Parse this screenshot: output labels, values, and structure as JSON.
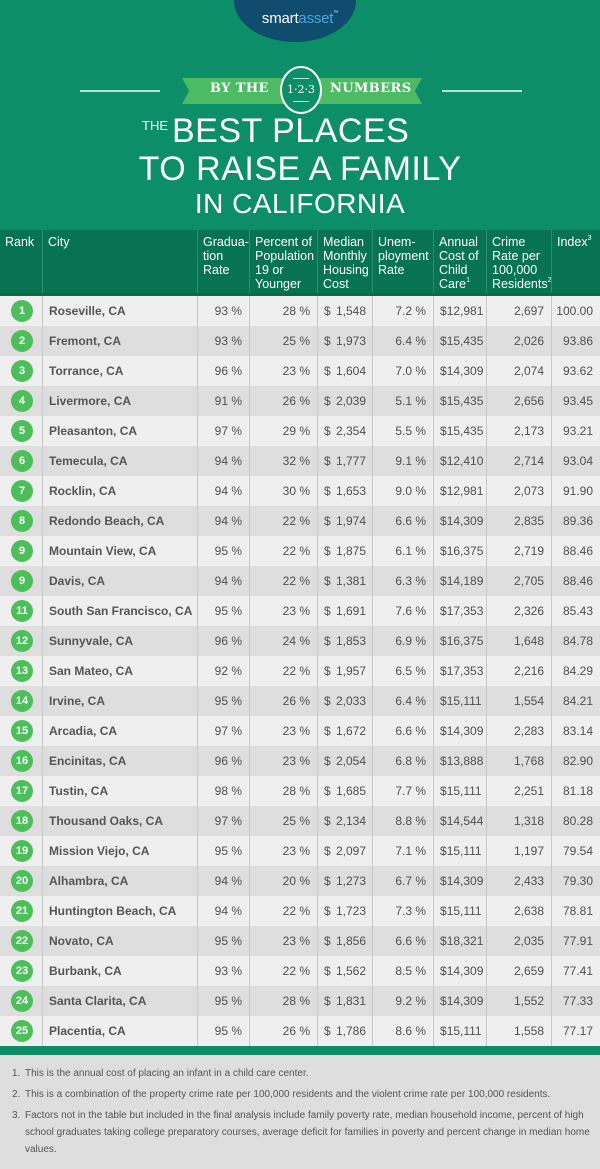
{
  "header": {
    "logo": {
      "part1": "smart",
      "part2": "asset",
      "tm": "™"
    },
    "banner": {
      "left": "BY THE",
      "circle": "1·2·3",
      "right": "NUMBERS"
    },
    "title": {
      "small": "THE",
      "line1": "BEST PLACES",
      "line2": "TO RAISE A FAMILY",
      "line3": "IN CALIFORNIA"
    }
  },
  "colors": {
    "background": "#0c8f68",
    "header_row": "#087350",
    "rank_badge": "#4cbf5b",
    "logo_bubble": "#0f4c6e",
    "row_light": "#efefef",
    "row_dark": "#dedede"
  },
  "table": {
    "columns": [
      {
        "label": "Rank",
        "sup": ""
      },
      {
        "label": "City",
        "sup": ""
      },
      {
        "label": "Gradua-tion Rate",
        "sup": ""
      },
      {
        "label": "Percent of Population 19 or Younger",
        "sup": ""
      },
      {
        "label": "Median Monthly Housing Cost",
        "sup": ""
      },
      {
        "label": "Unem-ployment Rate",
        "sup": ""
      },
      {
        "label": "Annual Cost of Child Care",
        "sup": "1"
      },
      {
        "label": "Crime Rate per 100,000 Residents",
        "sup": "2"
      },
      {
        "label": "Index",
        "sup": "3"
      }
    ],
    "rows": [
      {
        "rank": "1",
        "city": "Roseville, CA",
        "grad": "93 %",
        "pop": "28 %",
        "housing": "1,548",
        "unemp": "7.2 %",
        "childcare": "12,981",
        "crime": "2,697",
        "index": "100.00"
      },
      {
        "rank": "2",
        "city": "Fremont, CA",
        "grad": "93 %",
        "pop": "25 %",
        "housing": "1,973",
        "unemp": "6.4 %",
        "childcare": "15,435",
        "crime": "2,026",
        "index": "93.86"
      },
      {
        "rank": "3",
        "city": "Torrance, CA",
        "grad": "96 %",
        "pop": "23 %",
        "housing": "1,604",
        "unemp": "7.0 %",
        "childcare": "14,309",
        "crime": "2,074",
        "index": "93.62"
      },
      {
        "rank": "4",
        "city": "Livermore, CA",
        "grad": "91 %",
        "pop": "26 %",
        "housing": "2,039",
        "unemp": "5.1 %",
        "childcare": "15,435",
        "crime": "2,656",
        "index": "93.45"
      },
      {
        "rank": "5",
        "city": "Pleasanton, CA",
        "grad": "97 %",
        "pop": "29 %",
        "housing": "2,354",
        "unemp": "5.5 %",
        "childcare": "15,435",
        "crime": "2,173",
        "index": "93.21"
      },
      {
        "rank": "6",
        "city": "Temecula, CA",
        "grad": "94 %",
        "pop": "32 %",
        "housing": "1,777",
        "unemp": "9.1 %",
        "childcare": "12,410",
        "crime": "2,714",
        "index": "93.04"
      },
      {
        "rank": "7",
        "city": "Rocklin, CA",
        "grad": "94 %",
        "pop": "30 %",
        "housing": "1,653",
        "unemp": "9.0 %",
        "childcare": "12,981",
        "crime": "2,073",
        "index": "91.90"
      },
      {
        "rank": "8",
        "city": "Redondo Beach, CA",
        "grad": "94 %",
        "pop": "22 %",
        "housing": "1,974",
        "unemp": "6.6 %",
        "childcare": "14,309",
        "crime": "2,835",
        "index": "89.36"
      },
      {
        "rank": "9",
        "city": "Mountain View, CA",
        "grad": "95 %",
        "pop": "22 %",
        "housing": "1,875",
        "unemp": "6.1 %",
        "childcare": "16,375",
        "crime": "2,719",
        "index": "88.46"
      },
      {
        "rank": "9",
        "city": "Davis, CA",
        "grad": "94 %",
        "pop": "22 %",
        "housing": "1,381",
        "unemp": "6.3 %",
        "childcare": "14,189",
        "crime": "2,705",
        "index": "88.46"
      },
      {
        "rank": "11",
        "city": "South San Francisco, CA",
        "grad": "95 %",
        "pop": "23 %",
        "housing": "1,691",
        "unemp": "7.6 %",
        "childcare": "17,353",
        "crime": "2,326",
        "index": "85.43"
      },
      {
        "rank": "12",
        "city": "Sunnyvale, CA",
        "grad": "96 %",
        "pop": "24 %",
        "housing": "1,853",
        "unemp": "6.9 %",
        "childcare": "16,375",
        "crime": "1,648",
        "index": "84.78"
      },
      {
        "rank": "13",
        "city": "San Mateo, CA",
        "grad": "92 %",
        "pop": "22 %",
        "housing": "1,957",
        "unemp": "6.5 %",
        "childcare": "17,353",
        "crime": "2,216",
        "index": "84.29"
      },
      {
        "rank": "14",
        "city": "Irvine, CA",
        "grad": "95 %",
        "pop": "26 %",
        "housing": "2,033",
        "unemp": "6.4 %",
        "childcare": "15,111",
        "crime": "1,554",
        "index": "84.21"
      },
      {
        "rank": "15",
        "city": "Arcadia, CA",
        "grad": "97 %",
        "pop": "23 %",
        "housing": "1,672",
        "unemp": "6.6 %",
        "childcare": "14,309",
        "crime": "2,283",
        "index": "83.14"
      },
      {
        "rank": "16",
        "city": "Encinitas, CA",
        "grad": "96 %",
        "pop": "23 %",
        "housing": "2,054",
        "unemp": "6.8 %",
        "childcare": "13,888",
        "crime": "1,768",
        "index": "82.90"
      },
      {
        "rank": "17",
        "city": "Tustin, CA",
        "grad": "98 %",
        "pop": "28 %",
        "housing": "1,685",
        "unemp": "7.7 %",
        "childcare": "15,111",
        "crime": "2,251",
        "index": "81.18"
      },
      {
        "rank": "18",
        "city": "Thousand Oaks, CA",
        "grad": "97 %",
        "pop": "25 %",
        "housing": "2,134",
        "unemp": "8.8 %",
        "childcare": "14,544",
        "crime": "1,318",
        "index": "80.28"
      },
      {
        "rank": "19",
        "city": "Mission Viejo, CA",
        "grad": "95 %",
        "pop": "23 %",
        "housing": "2,097",
        "unemp": "7.1 %",
        "childcare": "15,111",
        "crime": "1,197",
        "index": "79.54"
      },
      {
        "rank": "20",
        "city": "Alhambra, CA",
        "grad": "94 %",
        "pop": "20 %",
        "housing": "1,273",
        "unemp": "6.7 %",
        "childcare": "14,309",
        "crime": "2,433",
        "index": "79.30"
      },
      {
        "rank": "21",
        "city": "Huntington Beach, CA",
        "grad": "94 %",
        "pop": "22 %",
        "housing": "1,723",
        "unemp": "7.3 %",
        "childcare": "15,111",
        "crime": "2,638",
        "index": "78.81"
      },
      {
        "rank": "22",
        "city": "Novato, CA",
        "grad": "95 %",
        "pop": "23 %",
        "housing": "1,856",
        "unemp": "6.6 %",
        "childcare": "18,321",
        "crime": "2,035",
        "index": "77.91"
      },
      {
        "rank": "23",
        "city": "Burbank, CA",
        "grad": "93 %",
        "pop": "22 %",
        "housing": "1,562",
        "unemp": "8.5 %",
        "childcare": "14,309",
        "crime": "2,659",
        "index": "77.41"
      },
      {
        "rank": "24",
        "city": "Santa Clarita, CA",
        "grad": "95 %",
        "pop": "28 %",
        "housing": "1,831",
        "unemp": "9.2 %",
        "childcare": "14,309",
        "crime": "1,552",
        "index": "77.33"
      },
      {
        "rank": "25",
        "city": "Placentia, CA",
        "grad": "95 %",
        "pop": "26 %",
        "housing": "1,786",
        "unemp": "8.6 %",
        "childcare": "15,111",
        "crime": "1,558",
        "index": "77.17"
      }
    ],
    "currency_symbol": "$"
  },
  "footnotes": [
    {
      "num": "1.",
      "text": "This is the annual cost of placing an infant in a child care center."
    },
    {
      "num": "2.",
      "text": "This is a combination of the property crime rate per 100,000 residents and the violent crime rate per 100,000 residents."
    },
    {
      "num": "3.",
      "text": "Factors not in the table but included in the final analysis include family poverty rate, median household income, percent of high school graduates taking college preparatory courses, average deficit for families in poverty and percent change in median home values."
    }
  ],
  "chart_data": {
    "type": "table",
    "title": "The Best Places to Raise a Family in California",
    "subtitle": "By the 1·2·3 Numbers",
    "columns": [
      "Rank",
      "City",
      "Graduation Rate",
      "Percent of Population 19 or Younger",
      "Median Monthly Housing Cost",
      "Unemployment Rate",
      "Annual Cost of Child Care",
      "Crime Rate per 100,000 Residents",
      "Index"
    ],
    "rows": [
      [
        1,
        "Roseville, CA",
        93,
        28,
        1548,
        7.2,
        12981,
        2697,
        100.0
      ],
      [
        2,
        "Fremont, CA",
        93,
        25,
        1973,
        6.4,
        15435,
        2026,
        93.86
      ],
      [
        3,
        "Torrance, CA",
        96,
        23,
        1604,
        7.0,
        14309,
        2074,
        93.62
      ],
      [
        4,
        "Livermore, CA",
        91,
        26,
        2039,
        5.1,
        15435,
        2656,
        93.45
      ],
      [
        5,
        "Pleasanton, CA",
        97,
        29,
        2354,
        5.5,
        15435,
        2173,
        93.21
      ],
      [
        6,
        "Temecula, CA",
        94,
        32,
        1777,
        9.1,
        12410,
        2714,
        93.04
      ],
      [
        7,
        "Rocklin, CA",
        94,
        30,
        1653,
        9.0,
        12981,
        2073,
        91.9
      ],
      [
        8,
        "Redondo Beach, CA",
        94,
        22,
        1974,
        6.6,
        14309,
        2835,
        89.36
      ],
      [
        9,
        "Mountain View, CA",
        95,
        22,
        1875,
        6.1,
        16375,
        2719,
        88.46
      ],
      [
        9,
        "Davis, CA",
        94,
        22,
        1381,
        6.3,
        14189,
        2705,
        88.46
      ],
      [
        11,
        "South San Francisco, CA",
        95,
        23,
        1691,
        7.6,
        17353,
        2326,
        85.43
      ],
      [
        12,
        "Sunnyvale, CA",
        96,
        24,
        1853,
        6.9,
        16375,
        1648,
        84.78
      ],
      [
        13,
        "San Mateo, CA",
        92,
        22,
        1957,
        6.5,
        17353,
        2216,
        84.29
      ],
      [
        14,
        "Irvine, CA",
        95,
        26,
        2033,
        6.4,
        15111,
        1554,
        84.21
      ],
      [
        15,
        "Arcadia, CA",
        97,
        23,
        1672,
        6.6,
        14309,
        2283,
        83.14
      ],
      [
        16,
        "Encinitas, CA",
        96,
        23,
        2054,
        6.8,
        13888,
        1768,
        82.9
      ],
      [
        17,
        "Tustin, CA",
        98,
        28,
        1685,
        7.7,
        15111,
        2251,
        81.18
      ],
      [
        18,
        "Thousand Oaks, CA",
        97,
        25,
        2134,
        8.8,
        14544,
        1318,
        80.28
      ],
      [
        19,
        "Mission Viejo, CA",
        95,
        23,
        2097,
        7.1,
        15111,
        1197,
        79.54
      ],
      [
        20,
        "Alhambra, CA",
        94,
        20,
        1273,
        6.7,
        14309,
        2433,
        79.3
      ],
      [
        21,
        "Huntington Beach, CA",
        94,
        22,
        1723,
        7.3,
        15111,
        2638,
        78.81
      ],
      [
        22,
        "Novato, CA",
        95,
        23,
        1856,
        6.6,
        18321,
        2035,
        77.91
      ],
      [
        23,
        "Burbank, CA",
        93,
        22,
        1562,
        8.5,
        14309,
        2659,
        77.41
      ],
      [
        24,
        "Santa Clarita, CA",
        95,
        28,
        1831,
        9.2,
        14309,
        1552,
        77.33
      ],
      [
        25,
        "Placentia, CA",
        95,
        26,
        1786,
        8.6,
        15111,
        1558,
        77.17
      ]
    ]
  }
}
